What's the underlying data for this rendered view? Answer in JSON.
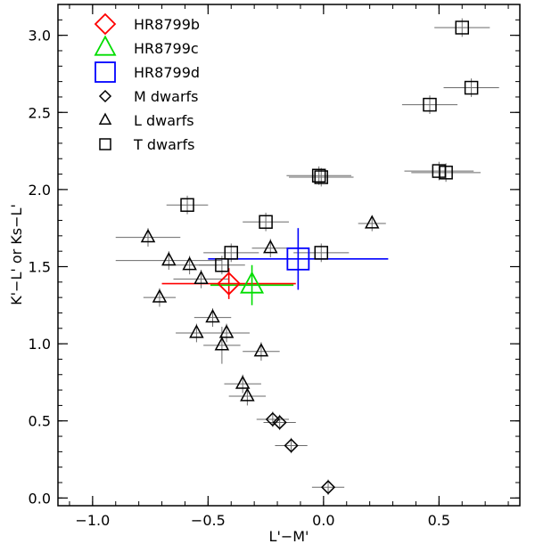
{
  "chart_data": {
    "type": "scatter",
    "title": "",
    "xlabel": "L'−M'",
    "ylabel": "K'−L' or Ks−L'",
    "xlim": [
      -1.15,
      0.85
    ],
    "ylim": [
      -0.05,
      3.2
    ],
    "x_ticks": [
      {
        "value": -1.0,
        "label": "−1.0"
      },
      {
        "value": -0.5,
        "label": "−0.5"
      },
      {
        "value": 0.0,
        "label": "0.0"
      },
      {
        "value": 0.5,
        "label": "0.5"
      }
    ],
    "y_ticks": [
      {
        "value": 0.0,
        "label": "0.0"
      },
      {
        "value": 0.5,
        "label": "0.5"
      },
      {
        "value": 1.0,
        "label": "1.0"
      },
      {
        "value": 1.5,
        "label": "1.5"
      },
      {
        "value": 2.0,
        "label": "2.0"
      },
      {
        "value": 2.5,
        "label": "2.5"
      },
      {
        "value": 3.0,
        "label": "3.0"
      }
    ],
    "x_minor_step": 0.1,
    "y_minor_step": 0.1,
    "grid": false,
    "legend_position": "top-left",
    "series": [
      {
        "name": "HR8799b",
        "marker": "diamond",
        "color": "#ff0000",
        "size": "large",
        "points": [
          {
            "x": -0.41,
            "y": 1.39,
            "xerr": 0.29,
            "yerr": 0.1
          }
        ]
      },
      {
        "name": "HR8799c",
        "marker": "triangle",
        "color": "#00dd00",
        "size": "large",
        "points": [
          {
            "x": -0.31,
            "y": 1.38,
            "xerr": 0.18,
            "yerr": 0.13
          }
        ]
      },
      {
        "name": "HR8799d",
        "marker": "square",
        "color": "#0000ff",
        "size": "large",
        "points": [
          {
            "x": -0.11,
            "y": 1.55,
            "xerr": 0.39,
            "yerr": 0.2
          }
        ]
      },
      {
        "name": "M dwarfs",
        "marker": "diamond",
        "color": "#000000",
        "size": "small",
        "points": [
          {
            "x": 0.02,
            "y": 0.07,
            "xerr": 0.07,
            "yerr": 0.05
          },
          {
            "x": -0.14,
            "y": 0.34,
            "xerr": 0.07,
            "yerr": 0.05
          },
          {
            "x": -0.22,
            "y": 0.51,
            "xerr": 0.07,
            "yerr": 0.05
          },
          {
            "x": -0.19,
            "y": 0.49,
            "xerr": 0.07,
            "yerr": 0.05
          }
        ]
      },
      {
        "name": "L dwarfs",
        "marker": "triangle",
        "color": "#000000",
        "size": "small",
        "points": [
          {
            "x": -0.33,
            "y": 0.66,
            "xerr": 0.08,
            "yerr": 0.06
          },
          {
            "x": -0.35,
            "y": 0.74,
            "xerr": 0.08,
            "yerr": 0.06
          },
          {
            "x": -0.27,
            "y": 0.95,
            "xerr": 0.08,
            "yerr": 0.06
          },
          {
            "x": -0.44,
            "y": 0.99,
            "xerr": 0.08,
            "yerr": 0.12
          },
          {
            "x": -0.42,
            "y": 1.07,
            "xerr": 0.1,
            "yerr": 0.06
          },
          {
            "x": -0.55,
            "y": 1.07,
            "xerr": 0.09,
            "yerr": 0.06
          },
          {
            "x": -0.48,
            "y": 1.17,
            "xerr": 0.08,
            "yerr": 0.06
          },
          {
            "x": -0.71,
            "y": 1.3,
            "xerr": 0.07,
            "yerr": 0.06
          },
          {
            "x": -0.53,
            "y": 1.42,
            "xerr": 0.12,
            "yerr": 0.06
          },
          {
            "x": -0.67,
            "y": 1.54,
            "xerr": 0.23,
            "yerr": 0.06
          },
          {
            "x": -0.58,
            "y": 1.51,
            "xerr": 0.12,
            "yerr": 0.06
          },
          {
            "x": -0.76,
            "y": 1.69,
            "xerr": 0.14,
            "yerr": 0.06
          },
          {
            "x": -0.23,
            "y": 1.62,
            "xerr": 0.08,
            "yerr": 0.06
          },
          {
            "x": 0.21,
            "y": 1.78,
            "xerr": 0.06,
            "yerr": 0.05
          }
        ]
      },
      {
        "name": "T dwarfs",
        "marker": "square",
        "color": "#000000",
        "size": "small",
        "points": [
          {
            "x": 0.6,
            "y": 3.05,
            "xerr": 0.12,
            "yerr": 0.06
          },
          {
            "x": 0.64,
            "y": 2.66,
            "xerr": 0.12,
            "yerr": 0.06
          },
          {
            "x": 0.46,
            "y": 2.55,
            "xerr": 0.12,
            "yerr": 0.06
          },
          {
            "x": -0.02,
            "y": 2.09,
            "xerr": 0.14,
            "yerr": 0.06
          },
          {
            "x": -0.01,
            "y": 2.08,
            "xerr": 0.14,
            "yerr": 0.06
          },
          {
            "x": 0.5,
            "y": 2.12,
            "xerr": 0.15,
            "yerr": 0.06
          },
          {
            "x": 0.53,
            "y": 2.11,
            "xerr": 0.15,
            "yerr": 0.06
          },
          {
            "x": -0.59,
            "y": 1.9,
            "xerr": 0.09,
            "yerr": 0.06
          },
          {
            "x": -0.25,
            "y": 1.79,
            "xerr": 0.1,
            "yerr": 0.06
          },
          {
            "x": -0.4,
            "y": 1.59,
            "xerr": 0.12,
            "yerr": 0.06
          },
          {
            "x": -0.01,
            "y": 1.59,
            "xerr": 0.12,
            "yerr": 0.06
          },
          {
            "x": -0.44,
            "y": 1.51,
            "xerr": 0.1,
            "yerr": 0.06
          }
        ]
      }
    ]
  }
}
